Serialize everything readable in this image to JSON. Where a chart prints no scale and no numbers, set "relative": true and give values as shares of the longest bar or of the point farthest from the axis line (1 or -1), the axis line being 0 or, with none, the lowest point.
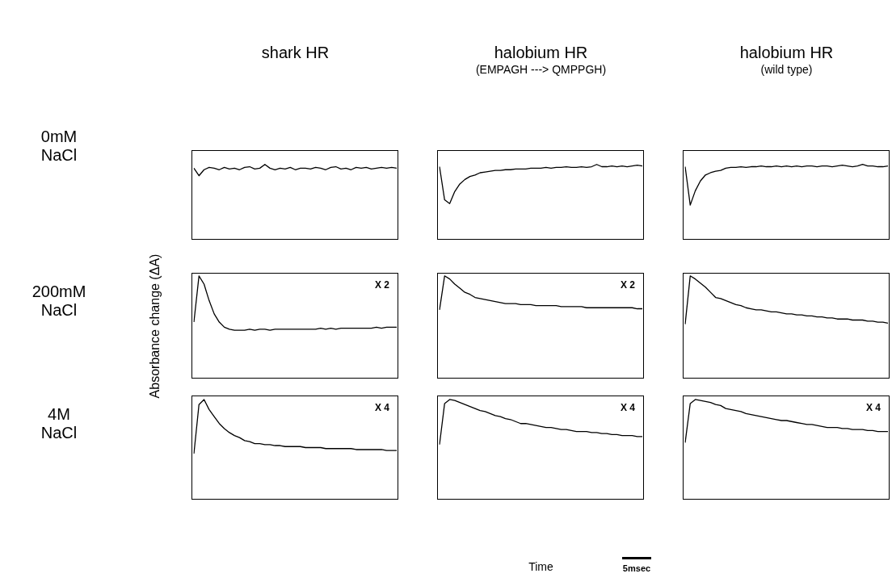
{
  "chart_data": [
    {
      "type": "line",
      "title": "shark HR",
      "relative": true,
      "marker": "none",
      "color": "#000000",
      "annotations": [
        "0mM NaCl"
      ],
      "categories": [
        null,
        null,
        null,
        null,
        null,
        null,
        null,
        null,
        null,
        null,
        null,
        null,
        null,
        null,
        null,
        null,
        null,
        null,
        null,
        null,
        null,
        null,
        null,
        null,
        null,
        null,
        null,
        null,
        null,
        null,
        null,
        null,
        null,
        null,
        null,
        null,
        null,
        null,
        null,
        null,
        null
      ],
      "values": [
        0.95,
        0.85,
        0.93,
        0.96,
        0.95,
        0.93,
        0.96,
        0.94,
        0.95,
        0.93,
        0.96,
        0.97,
        0.94,
        0.95,
        1.0,
        0.95,
        0.93,
        0.95,
        0.94,
        0.96,
        0.93,
        0.95,
        0.95,
        0.94,
        0.96,
        0.95,
        0.93,
        0.96,
        0.97,
        0.94,
        0.95,
        0.93,
        0.96,
        0.95,
        0.96,
        0.94,
        0.95,
        0.96,
        0.95,
        0.96,
        0.95
      ]
    },
    {
      "type": "line",
      "title": "halobium HR",
      "subtitle": "(EMPAGH ---> QMPPGH)",
      "relative": true,
      "marker": "none",
      "color": "#000000",
      "categories": [
        null,
        null,
        null,
        null,
        null,
        null,
        null,
        null,
        null,
        null,
        null,
        null,
        null,
        null,
        null,
        null,
        null,
        null,
        null,
        null,
        null,
        null,
        null,
        null,
        null,
        null,
        null,
        null,
        null,
        null,
        null,
        null,
        null,
        null,
        null,
        null,
        null,
        null,
        null,
        null,
        null
      ],
      "values": [
        0.97,
        0.53,
        0.48,
        0.64,
        0.74,
        0.8,
        0.84,
        0.86,
        0.89,
        0.9,
        0.91,
        0.92,
        0.92,
        0.93,
        0.93,
        0.94,
        0.94,
        0.94,
        0.95,
        0.95,
        0.95,
        0.96,
        0.95,
        0.96,
        0.96,
        0.97,
        0.96,
        0.96,
        0.97,
        0.96,
        0.97,
        1.0,
        0.97,
        0.97,
        0.98,
        0.97,
        0.98,
        0.97,
        0.98,
        0.99,
        0.98
      ]
    },
    {
      "type": "line",
      "title": "halobium HR",
      "subtitle": "(wild type)",
      "relative": true,
      "marker": "none",
      "color": "#000000",
      "categories": [
        null,
        null,
        null,
        null,
        null,
        null,
        null,
        null,
        null,
        null,
        null,
        null,
        null,
        null,
        null,
        null,
        null,
        null,
        null,
        null,
        null,
        null,
        null,
        null,
        null,
        null,
        null,
        null,
        null,
        null,
        null,
        null,
        null,
        null,
        null,
        null,
        null,
        null,
        null,
        null,
        null
      ],
      "values": [
        0.97,
        0.46,
        0.65,
        0.78,
        0.86,
        0.89,
        0.91,
        0.92,
        0.95,
        0.96,
        0.96,
        0.97,
        0.96,
        0.97,
        0.97,
        0.98,
        0.97,
        0.97,
        0.98,
        0.97,
        0.98,
        0.97,
        0.98,
        0.97,
        0.98,
        0.98,
        0.97,
        0.98,
        0.98,
        0.97,
        0.98,
        0.99,
        0.98,
        0.97,
        0.98,
        1.0,
        0.98,
        0.98,
        0.97,
        0.97,
        0.98
      ]
    },
    {
      "type": "line",
      "ylabel": "Absorbance change (ΔA)",
      "relative": true,
      "marker": "none",
      "color": "#000000",
      "annotations": [
        "200mM NaCl",
        "X 2"
      ],
      "categories": [
        null,
        null,
        null,
        null,
        null,
        null,
        null,
        null,
        null,
        null,
        null,
        null,
        null,
        null,
        null,
        null,
        null,
        null,
        null,
        null,
        null,
        null,
        null,
        null,
        null,
        null,
        null,
        null,
        null,
        null,
        null,
        null,
        null,
        null,
        null,
        null,
        null,
        null,
        null,
        null,
        null
      ],
      "values": [
        0.55,
        1.0,
        0.92,
        0.76,
        0.63,
        0.55,
        0.5,
        0.48,
        0.47,
        0.47,
        0.47,
        0.48,
        0.47,
        0.48,
        0.48,
        0.47,
        0.48,
        0.48,
        0.48,
        0.48,
        0.48,
        0.48,
        0.48,
        0.48,
        0.48,
        0.49,
        0.48,
        0.49,
        0.48,
        0.49,
        0.49,
        0.49,
        0.49,
        0.49,
        0.49,
        0.49,
        0.5,
        0.49,
        0.5,
        0.5,
        0.5
      ]
    },
    {
      "type": "line",
      "relative": true,
      "marker": "none",
      "color": "#000000",
      "annotations": [
        "X 2"
      ],
      "categories": [
        null,
        null,
        null,
        null,
        null,
        null,
        null,
        null,
        null,
        null,
        null,
        null,
        null,
        null,
        null,
        null,
        null,
        null,
        null,
        null,
        null,
        null,
        null,
        null,
        null,
        null,
        null,
        null,
        null,
        null,
        null,
        null,
        null,
        null,
        null,
        null,
        null,
        null,
        null,
        null,
        null
      ],
      "values": [
        0.67,
        1.0,
        0.97,
        0.92,
        0.88,
        0.84,
        0.82,
        0.79,
        0.78,
        0.77,
        0.76,
        0.75,
        0.74,
        0.73,
        0.73,
        0.73,
        0.72,
        0.72,
        0.72,
        0.71,
        0.71,
        0.71,
        0.71,
        0.71,
        0.7,
        0.7,
        0.7,
        0.7,
        0.7,
        0.69,
        0.69,
        0.69,
        0.69,
        0.69,
        0.69,
        0.69,
        0.69,
        0.69,
        0.69,
        0.68,
        0.68
      ]
    },
    {
      "type": "line",
      "relative": true,
      "marker": "none",
      "color": "#000000",
      "categories": [
        null,
        null,
        null,
        null,
        null,
        null,
        null,
        null,
        null,
        null,
        null,
        null,
        null,
        null,
        null,
        null,
        null,
        null,
        null,
        null,
        null,
        null,
        null,
        null,
        null,
        null,
        null,
        null,
        null,
        null,
        null,
        null,
        null,
        null,
        null,
        null,
        null,
        null,
        null,
        null,
        null
      ],
      "values": [
        0.53,
        1.0,
        0.97,
        0.93,
        0.89,
        0.84,
        0.79,
        0.78,
        0.76,
        0.74,
        0.72,
        0.71,
        0.69,
        0.68,
        0.67,
        0.67,
        0.66,
        0.65,
        0.65,
        0.64,
        0.63,
        0.63,
        0.62,
        0.62,
        0.61,
        0.61,
        0.6,
        0.6,
        0.59,
        0.59,
        0.58,
        0.58,
        0.58,
        0.57,
        0.57,
        0.57,
        0.56,
        0.56,
        0.55,
        0.55,
        0.54
      ]
    },
    {
      "type": "line",
      "relative": true,
      "marker": "none",
      "color": "#000000",
      "annotations": [
        "4M NaCl",
        "X 4"
      ],
      "categories": [
        null,
        null,
        null,
        null,
        null,
        null,
        null,
        null,
        null,
        null,
        null,
        null,
        null,
        null,
        null,
        null,
        null,
        null,
        null,
        null,
        null,
        null,
        null,
        null,
        null,
        null,
        null,
        null,
        null,
        null,
        null,
        null,
        null,
        null,
        null,
        null,
        null,
        null,
        null,
        null,
        null
      ],
      "values": [
        0.46,
        0.95,
        1.0,
        0.9,
        0.83,
        0.76,
        0.71,
        0.67,
        0.64,
        0.62,
        0.59,
        0.58,
        0.56,
        0.56,
        0.55,
        0.55,
        0.54,
        0.54,
        0.53,
        0.53,
        0.53,
        0.53,
        0.52,
        0.52,
        0.52,
        0.52,
        0.51,
        0.51,
        0.51,
        0.51,
        0.51,
        0.51,
        0.5,
        0.5,
        0.5,
        0.5,
        0.5,
        0.5,
        0.49,
        0.49,
        0.49
      ]
    },
    {
      "type": "line",
      "xlabel": "Time",
      "relative": true,
      "marker": "none",
      "color": "#000000",
      "annotations": [
        "X 4",
        "5msec"
      ],
      "categories": [
        null,
        null,
        null,
        null,
        null,
        null,
        null,
        null,
        null,
        null,
        null,
        null,
        null,
        null,
        null,
        null,
        null,
        null,
        null,
        null,
        null,
        null,
        null,
        null,
        null,
        null,
        null,
        null,
        null,
        null,
        null,
        null,
        null,
        null,
        null,
        null,
        null,
        null,
        null,
        null,
        null
      ],
      "values": [
        0.55,
        0.96,
        1.0,
        0.99,
        0.97,
        0.95,
        0.93,
        0.91,
        0.89,
        0.88,
        0.86,
        0.84,
        0.83,
        0.81,
        0.8,
        0.78,
        0.76,
        0.76,
        0.75,
        0.74,
        0.73,
        0.72,
        0.72,
        0.71,
        0.7,
        0.7,
        0.69,
        0.68,
        0.68,
        0.68,
        0.67,
        0.67,
        0.66,
        0.66,
        0.65,
        0.65,
        0.64,
        0.64,
        0.64,
        0.63,
        0.63
      ]
    },
    {
      "type": "line",
      "relative": true,
      "marker": "none",
      "color": "#000000",
      "annotations": [
        "X 4"
      ],
      "categories": [
        null,
        null,
        null,
        null,
        null,
        null,
        null,
        null,
        null,
        null,
        null,
        null,
        null,
        null,
        null,
        null,
        null,
        null,
        null,
        null,
        null,
        null,
        null,
        null,
        null,
        null,
        null,
        null,
        null,
        null,
        null,
        null,
        null,
        null,
        null,
        null,
        null,
        null,
        null,
        null,
        null
      ],
      "values": [
        0.57,
        0.96,
        1.0,
        0.99,
        0.98,
        0.97,
        0.95,
        0.94,
        0.91,
        0.9,
        0.89,
        0.88,
        0.86,
        0.85,
        0.84,
        0.83,
        0.82,
        0.81,
        0.8,
        0.79,
        0.79,
        0.78,
        0.77,
        0.76,
        0.75,
        0.75,
        0.74,
        0.73,
        0.72,
        0.72,
        0.72,
        0.71,
        0.71,
        0.7,
        0.7,
        0.7,
        0.69,
        0.69,
        0.68,
        0.68,
        0.68
      ]
    }
  ]
}
